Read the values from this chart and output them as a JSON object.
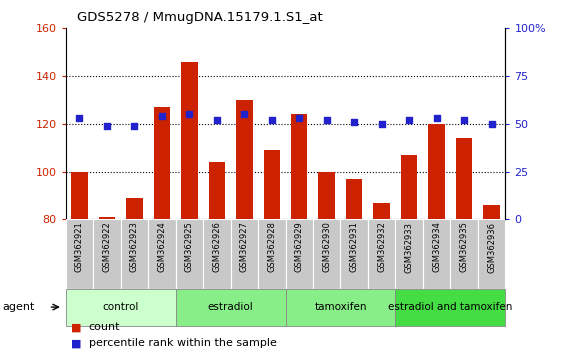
{
  "title": "GDS5278 / MmugDNA.15179.1.S1_at",
  "samples": [
    "GSM362921",
    "GSM362922",
    "GSM362923",
    "GSM362924",
    "GSM362925",
    "GSM362926",
    "GSM362927",
    "GSM362928",
    "GSM362929",
    "GSM362930",
    "GSM362931",
    "GSM362932",
    "GSM362933",
    "GSM362934",
    "GSM362935",
    "GSM362936"
  ],
  "counts": [
    100,
    81,
    89,
    127,
    146,
    104,
    130,
    109,
    124,
    100,
    97,
    87,
    107,
    120,
    114,
    86
  ],
  "percentile_ranks": [
    53,
    49,
    49,
    54,
    55,
    52,
    55,
    52,
    53,
    52,
    51,
    50,
    52,
    53,
    52,
    50
  ],
  "groups": [
    {
      "label": "control",
      "start": 0,
      "end": 4,
      "color": "#ccffcc"
    },
    {
      "label": "estradiol",
      "start": 4,
      "end": 8,
      "color": "#88ee88"
    },
    {
      "label": "tamoxifen",
      "start": 8,
      "end": 12,
      "color": "#88ee88"
    },
    {
      "label": "estradiol and tamoxifen",
      "start": 12,
      "end": 16,
      "color": "#44dd44"
    }
  ],
  "ylim_left": [
    80,
    160
  ],
  "ylim_right": [
    0,
    100
  ],
  "yticks_left": [
    80,
    100,
    120,
    140,
    160
  ],
  "yticks_right": [
    0,
    25,
    50,
    75,
    100
  ],
  "bar_color": "#cc2200",
  "dot_color": "#2222cc",
  "bar_width": 0.6,
  "bar_baseline": 80,
  "label_box_color": "#c8c8c8",
  "agent_label": "agent",
  "legend_count": "count",
  "legend_percentile": "percentile rank within the sample"
}
